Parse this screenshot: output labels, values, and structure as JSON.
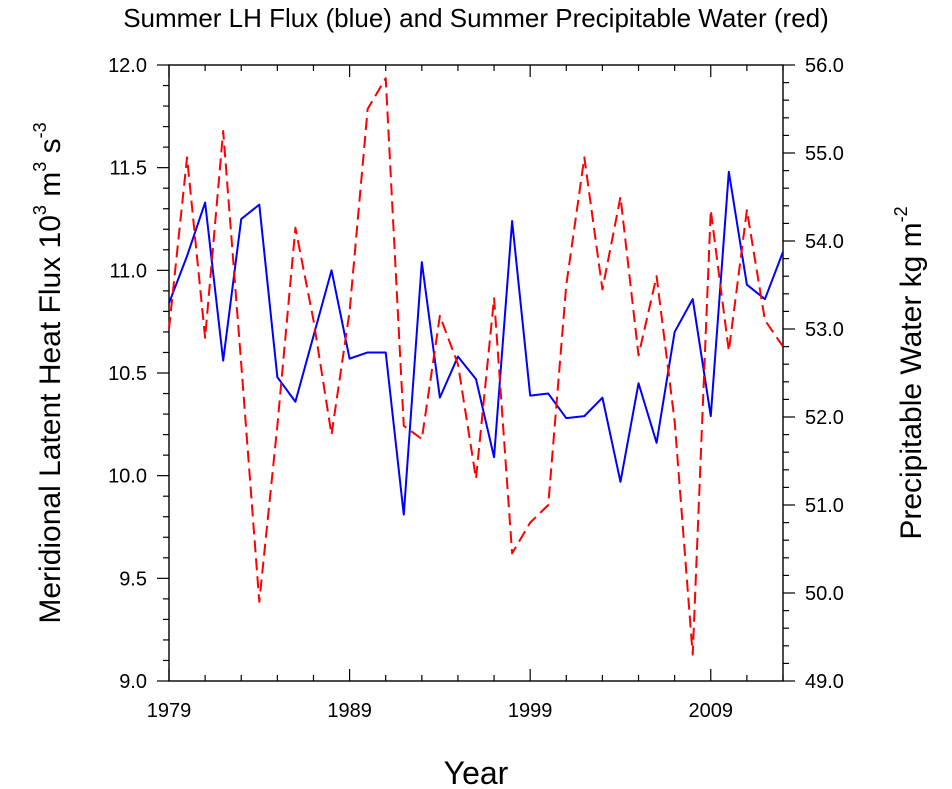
{
  "chart_data": {
    "type": "line",
    "title": "Summer LH Flux (blue) and Summer Precipitable Water (red)",
    "xlabel": "Year",
    "ylabel_left": {
      "main": "Meridional Latent Heat Flux 10",
      "sup1": "3",
      "mid": " m",
      "sup2": "3",
      "mid2": " s",
      "sup3": "-3"
    },
    "ylabel_right": {
      "main": "Precipitable Water kg m",
      "sup1": "-2"
    },
    "xlim": [
      1979,
      2013
    ],
    "x_ticks": [
      1979,
      1989,
      1999,
      2009
    ],
    "x_tick_labels": [
      "1979",
      "1989",
      "1999",
      "2009"
    ],
    "ylim_left": [
      9.0,
      12.0
    ],
    "y_ticks_left": [
      9.0,
      9.5,
      10.0,
      10.5,
      11.0,
      11.5,
      12.0
    ],
    "y_tick_labels_left": [
      "9.0",
      "9.5",
      "10.0",
      "10.5",
      "11.0",
      "11.5",
      "12.0"
    ],
    "ylim_right": [
      49.0,
      56.0
    ],
    "y_ticks_right": [
      49.0,
      50.0,
      51.0,
      52.0,
      53.0,
      54.0,
      55.0,
      56.0
    ],
    "y_tick_labels_right": [
      "49.0",
      "50.0",
      "51.0",
      "52.0",
      "53.0",
      "54.0",
      "55.0",
      "56.0"
    ],
    "grid": false,
    "series": [
      {
        "axis": "left",
        "color": "#0000ff",
        "dash": "solid",
        "x": [
          1979,
          1980,
          1981,
          1982,
          1983,
          1984,
          1985,
          1986,
          1987,
          1988,
          1989,
          1990,
          1991,
          1992,
          1993,
          1994,
          1995,
          1996,
          1997,
          1998,
          1999,
          2000,
          2001,
          2002,
          2003,
          2004,
          2005,
          2006,
          2007,
          2008,
          2009,
          2010,
          2011,
          2012,
          2013
        ],
        "values": [
          10.84,
          11.07,
          11.33,
          10.56,
          11.25,
          11.32,
          10.48,
          10.36,
          10.68,
          11.0,
          10.57,
          10.6,
          10.6,
          9.81,
          11.04,
          10.38,
          10.58,
          10.47,
          10.09,
          11.24,
          10.39,
          10.4,
          10.28,
          10.29,
          10.38,
          9.97,
          10.45,
          10.16,
          10.7,
          10.86,
          10.29,
          11.48,
          10.93,
          10.86,
          11.09
        ]
      },
      {
        "axis": "right",
        "color": "#ff0000",
        "dash": "dashed",
        "x": [
          1979,
          1980,
          1981,
          1982,
          1983,
          1984,
          1985,
          1986,
          1987,
          1988,
          1989,
          1990,
          1991,
          1992,
          1993,
          1994,
          1995,
          1996,
          1997,
          1998,
          1999,
          2000,
          2001,
          2002,
          2003,
          2004,
          2005,
          2006,
          2007,
          2008,
          2009,
          2010,
          2011,
          2012,
          2013
        ],
        "values": [
          53.0,
          54.95,
          52.9,
          55.25,
          52.6,
          49.9,
          51.9,
          54.15,
          53.1,
          51.8,
          53.2,
          55.5,
          55.85,
          51.9,
          51.75,
          53.15,
          52.6,
          51.3,
          53.35,
          50.45,
          50.8,
          51.0,
          53.5,
          54.95,
          53.45,
          54.5,
          52.7,
          53.6,
          51.95,
          49.3,
          54.35,
          52.75,
          54.35,
          53.1,
          52.8
        ]
      }
    ]
  }
}
